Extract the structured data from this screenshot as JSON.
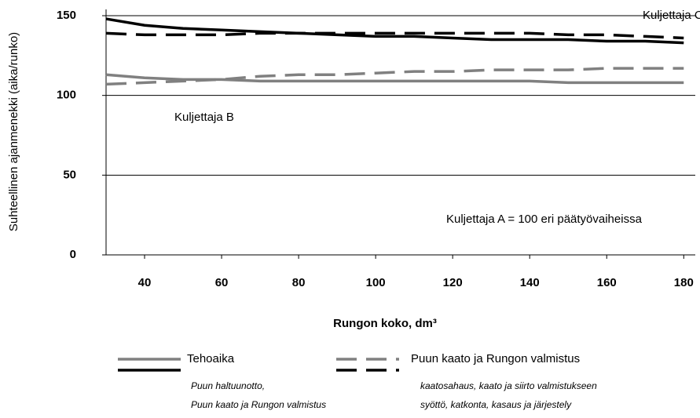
{
  "chart_data": {
    "type": "line",
    "y_label": "Suhteellinen ajanmenekki (aika/runko)",
    "x_label": "Rungon koko, dm³",
    "x": [
      30,
      40,
      50,
      60,
      70,
      80,
      90,
      100,
      110,
      120,
      130,
      140,
      150,
      160,
      170,
      180
    ],
    "xlim": [
      30,
      183
    ],
    "xticks": [
      40,
      60,
      80,
      100,
      120,
      140,
      160,
      180
    ],
    "ylim": [
      0,
      150
    ],
    "yticks": [
      0,
      50,
      100,
      150
    ],
    "grid": true,
    "annotations": [
      "Kuljettaja C",
      "Kuljettaja B",
      "Kuljettaja A = 100 eri päätyövaiheissa"
    ],
    "groups": [
      {
        "name": "Tehoaika",
        "notes": [
          "Puun haltuunotto,",
          "Puun kaato ja  Rungon valmistus"
        ],
        "dashed": false,
        "series": [
          {
            "color": "#808080",
            "values": [
              113,
              111,
              110,
              110,
              109,
              109,
              109,
              109,
              109,
              109,
              109,
              109,
              108,
              108,
              108,
              108
            ]
          },
          {
            "color": "#000000",
            "values": [
              148,
              144,
              142,
              141,
              140,
              139,
              138,
              137,
              137,
              136,
              135,
              135,
              135,
              134,
              134,
              133
            ]
          }
        ]
      },
      {
        "name": "Puun kaato ja Rungon valmistus",
        "notes": [
          "kaatosahaus, kaato ja siirto valmistukseen",
          "syöttö, katkonta, kasaus ja järjestely"
        ],
        "dashed": true,
        "series": [
          {
            "color": "#808080",
            "values": [
              107,
              108,
              109,
              110,
              112,
              113,
              113,
              114,
              115,
              115,
              116,
              116,
              116,
              117,
              117,
              117
            ]
          },
          {
            "color": "#000000",
            "values": [
              139,
              138,
              138,
              138,
              139,
              139,
              139,
              139,
              139,
              139,
              139,
              139,
              138,
              138,
              137,
              136
            ]
          }
        ]
      }
    ]
  }
}
